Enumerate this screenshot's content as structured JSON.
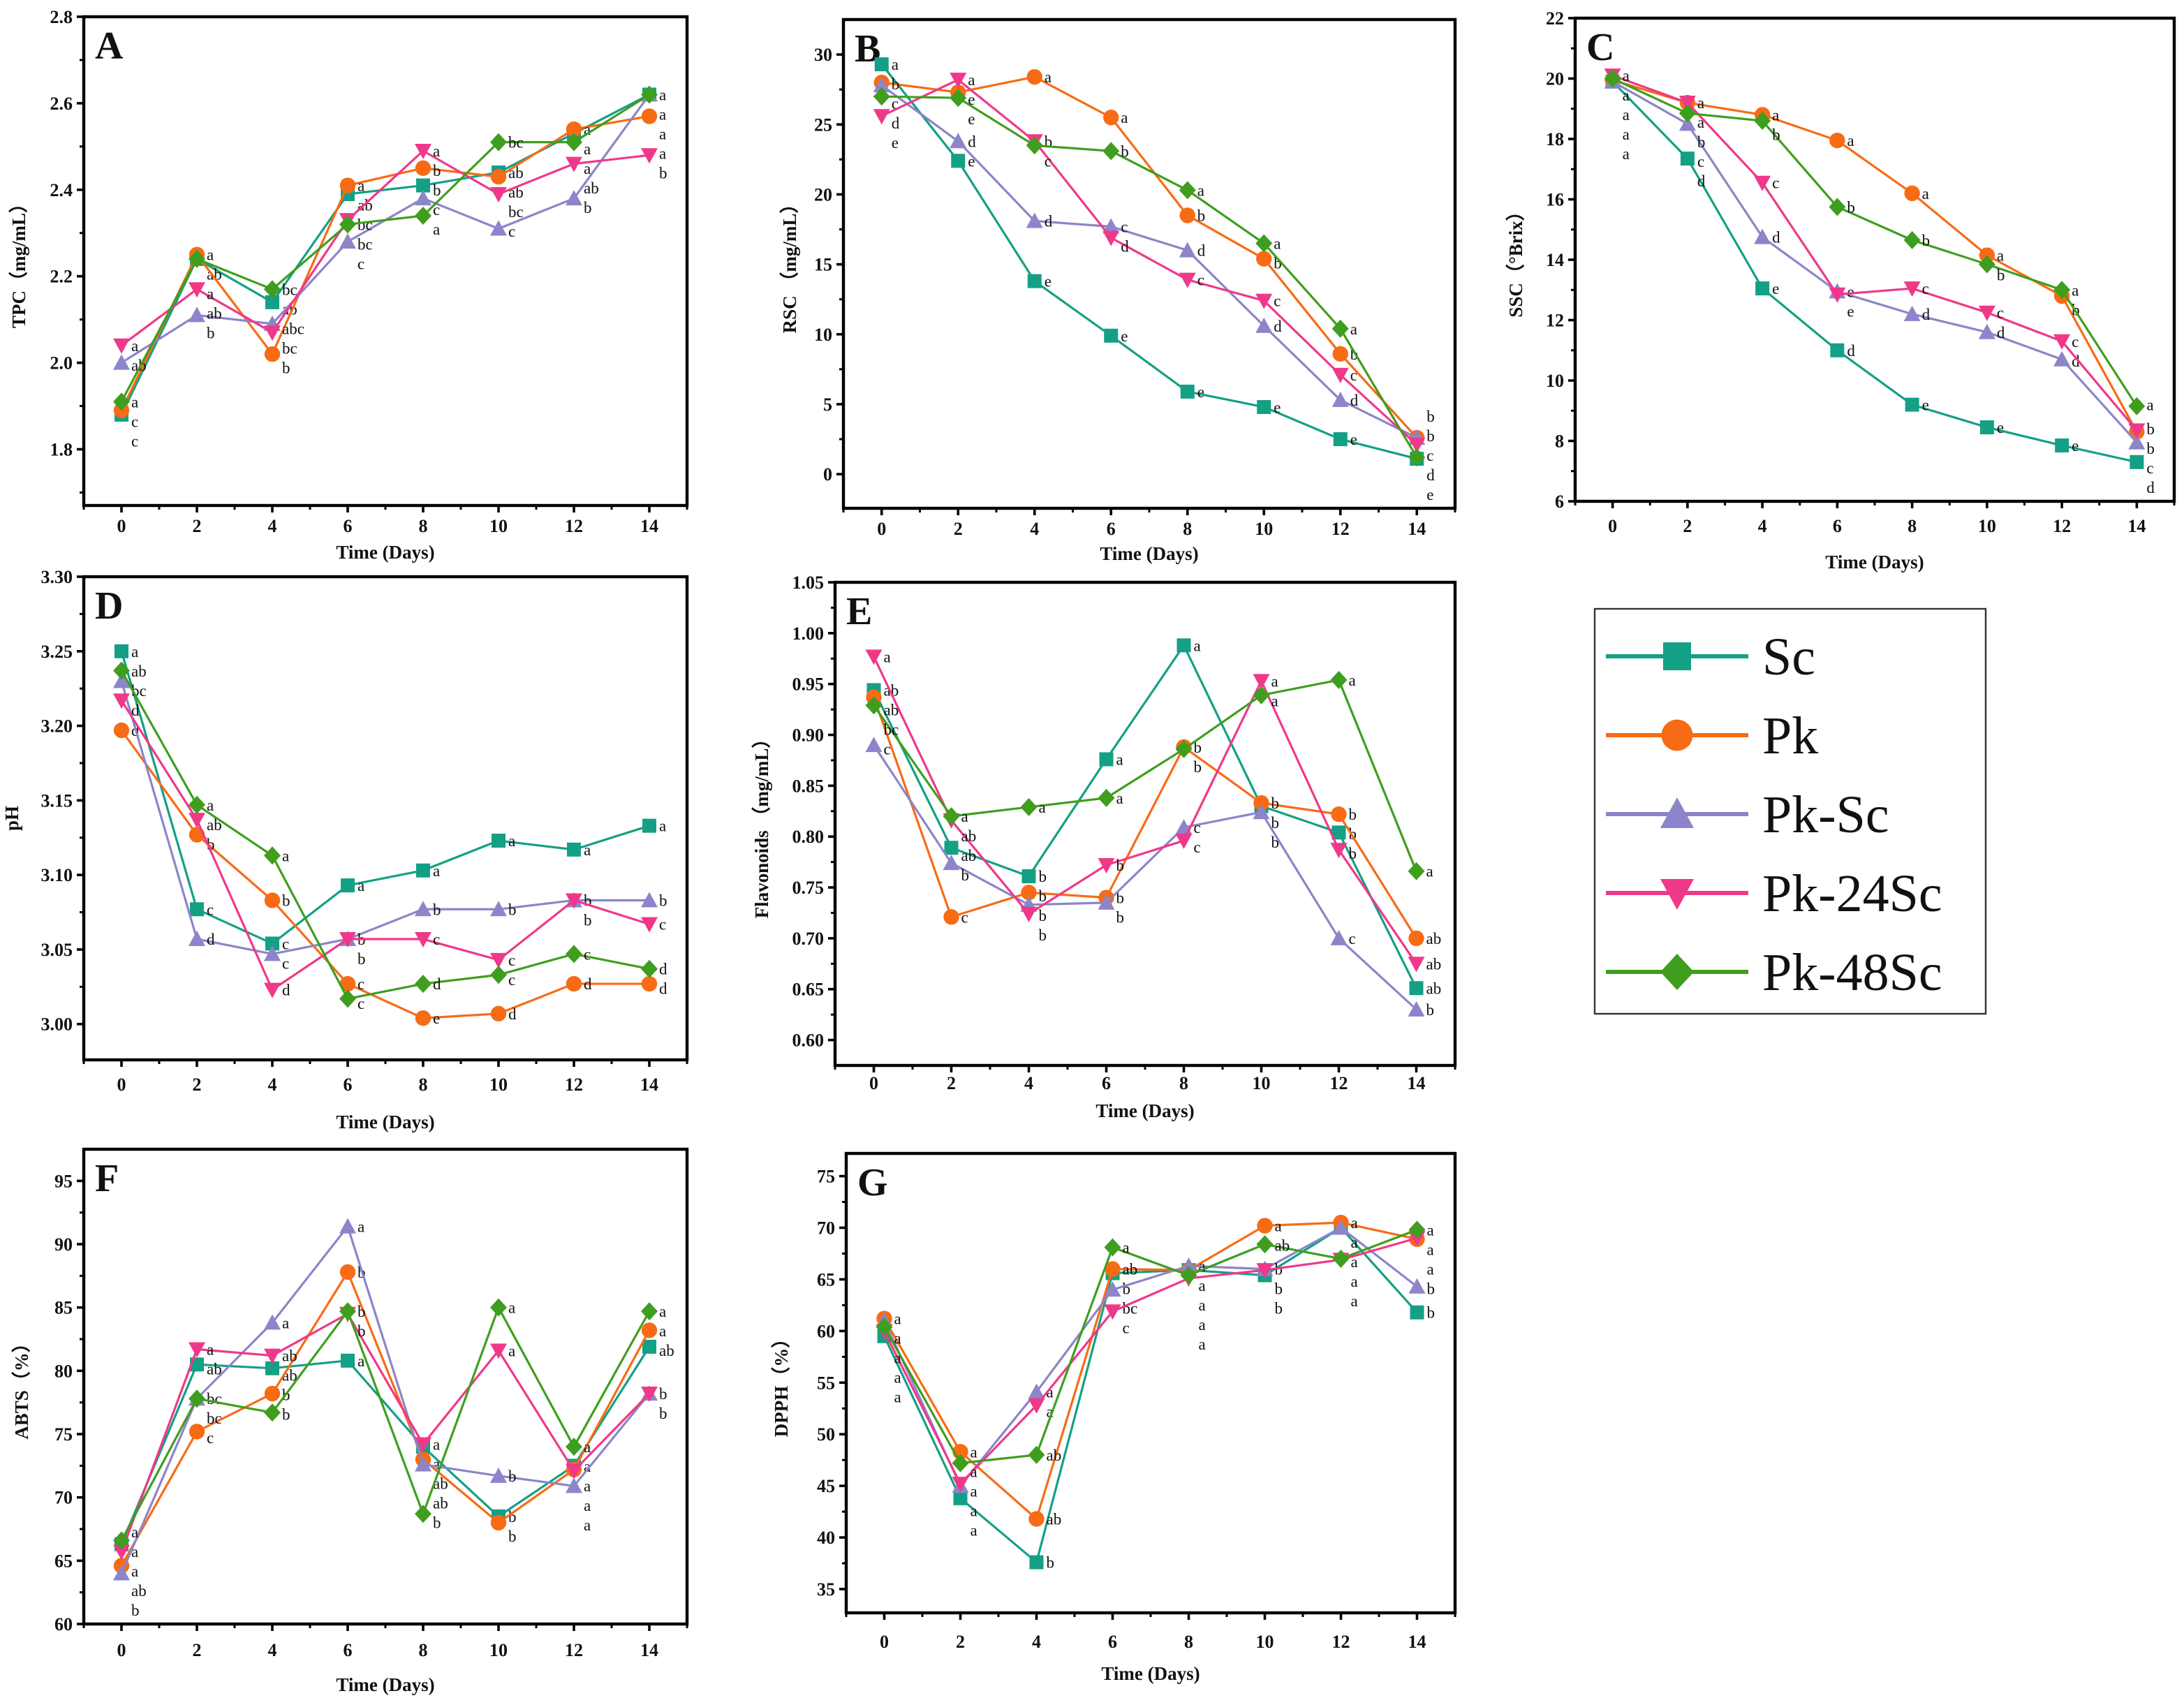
{
  "series_styles": [
    {
      "name": "Sc",
      "color": "#14a085",
      "marker": "square"
    },
    {
      "name": "Pk",
      "color": "#f76b15",
      "marker": "circle"
    },
    {
      "name": "Pk-Sc",
      "color": "#8c85c9",
      "marker": "triangle-up"
    },
    {
      "name": "Pk-24Sc",
      "color": "#f0388a",
      "marker": "triangle-down"
    },
    {
      "name": "Pk-48Sc",
      "color": "#3f9e1e",
      "marker": "diamond"
    }
  ],
  "legend": {
    "placement": "right-middle",
    "entries": [
      "Sc",
      "Pk",
      "Pk-Sc",
      "Pk-24Sc",
      "Pk-48Sc"
    ]
  },
  "chart_data": [
    {
      "type": "line",
      "panel_label": "A",
      "xlabel": "Time (Days)",
      "ylabel": "TPC（mg/mL）",
      "x": [
        0,
        2,
        4,
        6,
        8,
        10,
        12,
        14
      ],
      "xlim": [
        -1,
        15
      ],
      "xticks": [
        "0",
        "2",
        "4",
        "6",
        "8",
        "10",
        "12",
        "14"
      ],
      "ylim": [
        1.67,
        2.8
      ],
      "yticks": [
        "1.8",
        "2.0",
        "2.2",
        "2.4",
        "2.6",
        "2.8"
      ],
      "series": [
        {
          "name": "Sc",
          "values": [
            1.88,
            2.24,
            2.14,
            2.39,
            2.41,
            2.44,
            2.53,
            2.62
          ],
          "letters": [
            "c",
            "ab",
            "ab",
            "ab",
            "b",
            "ab",
            "a",
            "a"
          ]
        },
        {
          "name": "Pk",
          "values": [
            1.89,
            2.25,
            2.02,
            2.41,
            2.45,
            2.43,
            2.54,
            2.57
          ],
          "letters": [
            "c",
            "a",
            "b",
            "a",
            "b",
            "ab",
            "a",
            "a"
          ]
        },
        {
          "name": "Pk-Sc",
          "values": [
            2.0,
            2.11,
            2.09,
            2.28,
            2.38,
            2.31,
            2.38,
            2.62
          ],
          "letters": [
            "ab",
            "b",
            "abc",
            "c",
            "c",
            "c",
            "b",
            "a"
          ]
        },
        {
          "name": "Pk-24Sc",
          "values": [
            2.04,
            2.17,
            2.07,
            2.33,
            2.49,
            2.39,
            2.46,
            2.48
          ],
          "letters": [
            "a",
            "ab",
            "bc",
            "bc",
            "a",
            "bc",
            "ab",
            "b"
          ]
        },
        {
          "name": "Pk-48Sc",
          "values": [
            1.91,
            2.24,
            2.17,
            2.32,
            2.34,
            2.51,
            2.51,
            2.62
          ],
          "letters": [
            "a",
            "a",
            "bc",
            "bc",
            "a",
            "bc",
            "a",
            "a"
          ]
        }
      ]
    },
    {
      "type": "line",
      "panel_label": "B",
      "xlabel": "Time (Days)",
      "ylabel": "RSC （mg/mL）",
      "x": [
        0,
        2,
        4,
        6,
        8,
        10,
        12,
        14
      ],
      "xlim": [
        -1,
        15
      ],
      "xticks": [
        "0",
        "2",
        "4",
        "6",
        "8",
        "10",
        "12",
        "14"
      ],
      "ylim": [
        -2.44,
        32.5
      ],
      "yticks": [
        "0",
        "5",
        "10",
        "15",
        "20",
        "25",
        "30"
      ],
      "series": [
        {
          "name": "Sc",
          "values": [
            29.3,
            22.4,
            13.8,
            9.9,
            5.9,
            4.8,
            2.5,
            1.1
          ],
          "letters": [
            "a",
            "e",
            "e",
            "e",
            "e",
            "e",
            "e",
            "e"
          ]
        },
        {
          "name": "Pk",
          "values": [
            28.0,
            27.3,
            28.4,
            25.5,
            18.5,
            15.4,
            8.6,
            2.6
          ],
          "letters": [
            "b",
            "e",
            "a",
            "a",
            "b",
            "b",
            "b",
            "b"
          ]
        },
        {
          "name": "Pk-Sc",
          "values": [
            27.8,
            23.8,
            18.1,
            17.7,
            16.0,
            10.6,
            5.3,
            2.6
          ],
          "letters": [
            "c",
            "d",
            "d",
            "c",
            "d",
            "d",
            "d",
            "b"
          ]
        },
        {
          "name": "Pk-24Sc",
          "values": [
            25.6,
            28.2,
            23.8,
            16.9,
            13.9,
            12.4,
            7.1,
            2.1
          ],
          "letters": [
            "e",
            "a",
            "b",
            "d",
            "c",
            "c",
            "c",
            "c"
          ]
        },
        {
          "name": "Pk-48Sc",
          "values": [
            27.0,
            26.9,
            23.5,
            23.1,
            20.3,
            16.5,
            10.4,
            1.2
          ],
          "letters": [
            "d",
            "e",
            "c",
            "b",
            "a",
            "a",
            "a",
            "d"
          ]
        }
      ]
    },
    {
      "type": "line",
      "panel_label": "C",
      "xlabel": "Time (Days)",
      "ylabel": "SSC（°Brix）",
      "x": [
        0,
        2,
        4,
        6,
        8,
        10,
        12,
        14
      ],
      "xlim": [
        -1,
        15
      ],
      "xticks": [
        "0",
        "2",
        "4",
        "6",
        "8",
        "10",
        "12",
        "14"
      ],
      "ylim": [
        6,
        22
      ],
      "yticks": [
        "6",
        "8",
        "10",
        "12",
        "14",
        "16",
        "18",
        "20",
        "22"
      ],
      "series": [
        {
          "name": "Sc",
          "values": [
            19.9,
            17.35,
            13.05,
            11.0,
            9.2,
            8.45,
            7.85,
            7.3
          ],
          "letters": [
            "a",
            "d",
            "e",
            "d",
            "e",
            "e",
            "e",
            "d"
          ]
        },
        {
          "name": "Pk",
          "values": [
            19.95,
            19.2,
            18.8,
            17.95,
            16.2,
            14.15,
            12.8,
            8.3
          ],
          "letters": [
            "a",
            "a",
            "a",
            "a",
            "a",
            "a",
            "b",
            "b"
          ]
        },
        {
          "name": "Pk-Sc",
          "values": [
            19.9,
            18.5,
            14.75,
            12.95,
            12.2,
            11.6,
            10.7,
            7.95
          ],
          "letters": [
            "a",
            "c",
            "d",
            "e",
            "d",
            "d",
            "d",
            "c"
          ]
        },
        {
          "name": "Pk-24Sc",
          "values": [
            20.1,
            19.2,
            16.55,
            12.85,
            13.05,
            12.25,
            11.3,
            8.35
          ],
          "letters": [
            "a",
            "a",
            "c",
            "e",
            "c",
            "c",
            "c",
            "b"
          ]
        },
        {
          "name": "Pk-48Sc",
          "values": [
            20.0,
            18.85,
            18.6,
            15.75,
            14.65,
            13.85,
            13.0,
            9.15
          ],
          "letters": [
            "a",
            "b",
            "b",
            "b",
            "b",
            "b",
            "a",
            "a"
          ]
        }
      ]
    },
    {
      "type": "line",
      "panel_label": "D",
      "xlabel": "Time (Days)",
      "ylabel": "pH",
      "x": [
        0,
        2,
        4,
        6,
        8,
        10,
        12,
        14
      ],
      "xlim": [
        -1,
        15
      ],
      "xticks": [
        "0",
        "2",
        "4",
        "6",
        "8",
        "10",
        "12",
        "14"
      ],
      "ylim": [
        2.976,
        3.3
      ],
      "yticks": [
        "3.00",
        "3.05",
        "3.10",
        "3.15",
        "3.20",
        "3.25",
        "3.30"
      ],
      "series": [
        {
          "name": "Sc",
          "values": [
            3.25,
            3.077,
            3.054,
            3.093,
            3.103,
            3.123,
            3.117,
            3.133
          ],
          "letters": [
            "a",
            "c",
            "c",
            "a",
            "a",
            "a",
            "a",
            "a"
          ]
        },
        {
          "name": "Pk",
          "values": [
            3.197,
            3.127,
            3.083,
            3.027,
            3.004,
            3.007,
            3.027,
            3.027
          ],
          "letters": [
            "d",
            "b",
            "b",
            "c",
            "e",
            "d",
            "d",
            "d"
          ]
        },
        {
          "name": "Pk-Sc",
          "values": [
            3.23,
            3.057,
            3.047,
            3.057,
            3.077,
            3.077,
            3.083,
            3.083
          ],
          "letters": [
            "bc",
            "d",
            "c",
            "b",
            "b",
            "b",
            "b",
            "b"
          ]
        },
        {
          "name": "Pk-24Sc",
          "values": [
            3.217,
            3.137,
            3.023,
            3.057,
            3.057,
            3.043,
            3.083,
            3.067
          ],
          "letters": [
            "d",
            "ab",
            "d",
            "b",
            "c",
            "c",
            "b",
            "c"
          ]
        },
        {
          "name": "Pk-48Sc",
          "values": [
            3.237,
            3.147,
            3.113,
            3.017,
            3.027,
            3.033,
            3.047,
            3.037
          ],
          "letters": [
            "ab",
            "a",
            "a",
            "c",
            "d",
            "c",
            "c",
            "d"
          ]
        }
      ]
    },
    {
      "type": "line",
      "panel_label": "E",
      "xlabel": "Time (Days)",
      "ylabel": "Flavonoids （mg/mL）",
      "x": [
        0,
        2,
        4,
        6,
        8,
        10,
        12,
        14
      ],
      "xlim": [
        -1,
        15
      ],
      "xticks": [
        "0",
        "2",
        "4",
        "6",
        "8",
        "10",
        "12",
        "14"
      ],
      "ylim": [
        0.575,
        1.05
      ],
      "yticks": [
        "0.60",
        "0.65",
        "0.70",
        "0.75",
        "0.80",
        "0.85",
        "0.90",
        "0.95",
        "1.00",
        "1.05"
      ],
      "series": [
        {
          "name": "Sc",
          "values": [
            0.944,
            0.789,
            0.761,
            0.876,
            0.988,
            0.83,
            0.804,
            0.651
          ],
          "letters": [
            "ab",
            "ab",
            "b",
            "a",
            "a",
            "b",
            "b",
            "ab"
          ]
        },
        {
          "name": "Pk",
          "values": [
            0.937,
            0.721,
            0.745,
            0.74,
            0.888,
            0.833,
            0.822,
            0.7
          ],
          "letters": [
            "ab",
            "c",
            "b",
            "b",
            "b",
            "b",
            "b",
            "ab"
          ]
        },
        {
          "name": "Pk-Sc",
          "values": [
            0.89,
            0.774,
            0.733,
            0.735,
            0.809,
            0.824,
            0.7,
            0.63
          ],
          "letters": [
            "c",
            "b",
            "b",
            "b",
            "c",
            "b",
            "c",
            "b"
          ]
        },
        {
          "name": "Pk-24Sc",
          "values": [
            0.977,
            0.816,
            0.724,
            0.772,
            0.796,
            0.953,
            0.787,
            0.675
          ],
          "letters": [
            "a",
            "ab",
            "b",
            "b",
            "c",
            "a",
            "b",
            "ab"
          ]
        },
        {
          "name": "Pk-48Sc",
          "values": [
            0.929,
            0.82,
            0.829,
            0.838,
            0.886,
            0.939,
            0.954,
            0.766
          ],
          "letters": [
            "bc",
            "a",
            "a",
            "a",
            "b",
            "a",
            "a",
            "a"
          ]
        }
      ]
    },
    {
      "type": "line",
      "panel_label": "F",
      "xlabel": "Time (Days)",
      "ylabel": "ABTS（%）",
      "x": [
        0,
        2,
        4,
        6,
        8,
        10,
        12,
        14
      ],
      "xlim": [
        -1,
        15
      ],
      "xticks": [
        "0",
        "2",
        "4",
        "6",
        "8",
        "10",
        "12",
        "14"
      ],
      "ylim": [
        60,
        97.5
      ],
      "yticks": [
        "60",
        "65",
        "70",
        "75",
        "80",
        "85",
        "90",
        "95"
      ],
      "series": [
        {
          "name": "Sc",
          "values": [
            66.3,
            80.5,
            80.2,
            80.8,
            74.0,
            68.5,
            72.5,
            81.9
          ],
          "letters": [
            "a",
            "ab",
            "ab",
            "a",
            "a",
            "b",
            "a",
            "ab"
          ]
        },
        {
          "name": "Pk",
          "values": [
            64.6,
            75.2,
            78.2,
            87.8,
            73.0,
            68.0,
            72.2,
            83.2
          ],
          "letters": [
            "ab",
            "c",
            "b",
            "b",
            "ab",
            "b",
            "a",
            "a"
          ]
        },
        {
          "name": "Pk-Sc",
          "values": [
            64.0,
            77.8,
            83.8,
            91.4,
            72.6,
            71.7,
            70.9,
            78.2
          ],
          "letters": [
            "b",
            "bc",
            "a",
            "a",
            "ab",
            "b",
            "a",
            "b"
          ]
        },
        {
          "name": "Pk-24Sc",
          "values": [
            65.7,
            81.7,
            81.2,
            84.5,
            74.2,
            81.6,
            72.1,
            78.2
          ],
          "letters": [
            "a",
            "a",
            "ab",
            "b",
            "a",
            "a",
            "a",
            "b"
          ]
        },
        {
          "name": "Pk-48Sc",
          "values": [
            66.6,
            77.8,
            76.7,
            84.7,
            68.7,
            85.0,
            74.0,
            84.7
          ],
          "letters": [
            "a",
            "bc",
            "b",
            "b",
            "b",
            "a",
            "a",
            "a"
          ]
        }
      ]
    },
    {
      "type": "line",
      "panel_label": "G",
      "xlabel": "Time (Days)",
      "ylabel": "DPPH（%）",
      "x": [
        0,
        2,
        4,
        6,
        8,
        10,
        12,
        14
      ],
      "xlim": [
        -1,
        15
      ],
      "xticks": [
        "0",
        "2",
        "4",
        "6",
        "8",
        "10",
        "12",
        "14"
      ],
      "ylim": [
        32.7,
        77.2
      ],
      "yticks": [
        "35",
        "40",
        "45",
        "50",
        "55",
        "60",
        "65",
        "70",
        "75"
      ],
      "series": [
        {
          "name": "Sc",
          "values": [
            59.5,
            43.8,
            37.6,
            65.6,
            65.9,
            65.4,
            70.0,
            61.8
          ],
          "letters": [
            "a",
            "a",
            "b",
            "b",
            "a",
            "b",
            "a",
            "b"
          ]
        },
        {
          "name": "Pk",
          "values": [
            61.2,
            48.3,
            41.8,
            66.0,
            65.9,
            70.2,
            70.5,
            68.9
          ],
          "letters": [
            "a",
            "a",
            "ab",
            "ab",
            "a",
            "a",
            "a",
            "a"
          ]
        },
        {
          "name": "Pk-Sc",
          "values": [
            61.0,
            45.0,
            54.1,
            64.0,
            66.3,
            66.0,
            70.0,
            64.3
          ],
          "letters": [
            "a",
            "a",
            "a",
            "bc",
            "a",
            "b",
            "a",
            "b"
          ]
        },
        {
          "name": "Pk-24Sc",
          "values": [
            60.0,
            45.2,
            52.8,
            61.9,
            65.1,
            65.9,
            66.9,
            69.0
          ],
          "letters": [
            "a",
            "a",
            "a",
            "c",
            "a",
            "b",
            "a",
            "a"
          ]
        },
        {
          "name": "Pk-48Sc",
          "values": [
            60.4,
            47.2,
            48.0,
            68.1,
            65.4,
            68.4,
            67.0,
            69.8
          ],
          "letters": [
            "a",
            "a",
            "ab",
            "a",
            "a",
            "ab",
            "a",
            "a"
          ]
        }
      ]
    }
  ]
}
